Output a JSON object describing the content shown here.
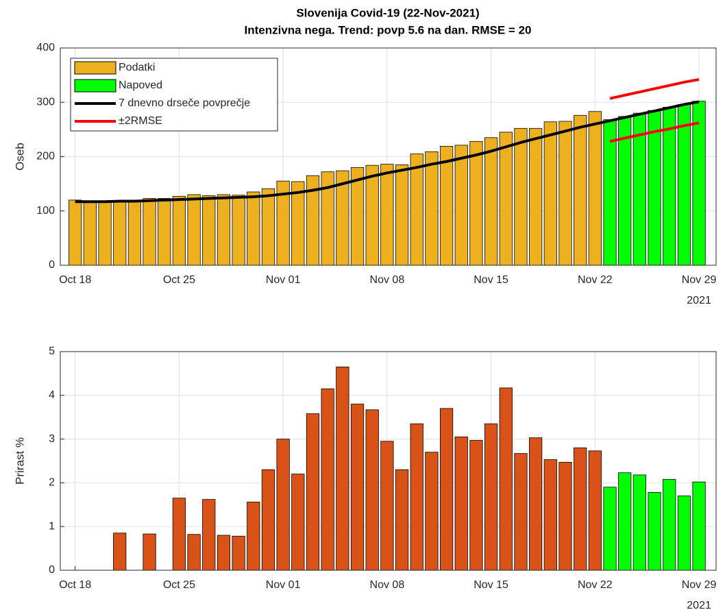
{
  "chart_data": [
    {
      "type": "bar",
      "title": "Slovenija Covid-19 (22-Nov-2021)",
      "subtitle": "Intenzivna nega. Trend: povp 5.6 na dan. RMSE = 20",
      "ylabel": "Oseb",
      "categories": [
        "Oct 18",
        null,
        null,
        null,
        null,
        null,
        null,
        "Oct 25",
        null,
        null,
        null,
        null,
        null,
        null,
        "Nov 01",
        null,
        null,
        null,
        null,
        null,
        null,
        "Nov 08",
        null,
        null,
        null,
        null,
        null,
        null,
        "Nov 15",
        null,
        null,
        null,
        null,
        null,
        null,
        "Nov 22",
        null,
        null,
        null,
        null,
        null,
        null,
        "Nov 29"
      ],
      "x_year": "2021",
      "ylim": [
        0,
        400
      ],
      "yticks": [
        0,
        100,
        200,
        300,
        400
      ],
      "grid": true,
      "legend": "northwest",
      "series": [
        {
          "name": "Podatki",
          "type": "bar",
          "color": "#edb120",
          "values": [
            120,
            117,
            117,
            118,
            118,
            123,
            123,
            127,
            130,
            128,
            130,
            129,
            135,
            141,
            155,
            154,
            165,
            172,
            174,
            180,
            184,
            186,
            185,
            205,
            209,
            219,
            221,
            228,
            235,
            245,
            252,
            252,
            264,
            265,
            276,
            283,
            null,
            null,
            null,
            null,
            null,
            null,
            null
          ]
        },
        {
          "name": "Napoved",
          "type": "bar",
          "color": "#00ff00",
          "values": [
            null,
            null,
            null,
            null,
            null,
            null,
            null,
            null,
            null,
            null,
            null,
            null,
            null,
            null,
            null,
            null,
            null,
            null,
            null,
            null,
            null,
            null,
            null,
            null,
            null,
            null,
            null,
            null,
            null,
            null,
            null,
            null,
            null,
            null,
            null,
            null,
            268,
            274,
            280,
            285,
            291,
            296,
            302
          ]
        },
        {
          "name": "7 dnevno drseče povprečje",
          "type": "line",
          "color": "#000000",
          "values": [
            117,
            117,
            117,
            118,
            118,
            119,
            120,
            121,
            122,
            123,
            124,
            125,
            126,
            128,
            131,
            134,
            138,
            143,
            150,
            157,
            164,
            170,
            175,
            180,
            186,
            191,
            197,
            203,
            210,
            218,
            226,
            233,
            240,
            247,
            254,
            260,
            266,
            272,
            278,
            284,
            290,
            296,
            301
          ]
        },
        {
          "name": "±2RMSE",
          "type": "line",
          "color": "#ff0000",
          "values": [
            null,
            null,
            null,
            null,
            null,
            null,
            null,
            null,
            null,
            null,
            null,
            null,
            null,
            null,
            null,
            null,
            null,
            null,
            null,
            null,
            null,
            null,
            null,
            null,
            null,
            null,
            null,
            null,
            null,
            null,
            null,
            null,
            null,
            null,
            null,
            null,
            307,
            313,
            319,
            325,
            331,
            337,
            342
          ]
        },
        {
          "type": "line",
          "color": "#ff0000",
          "values": [
            null,
            null,
            null,
            null,
            null,
            null,
            null,
            null,
            null,
            null,
            null,
            null,
            null,
            null,
            null,
            null,
            null,
            null,
            null,
            null,
            null,
            null,
            null,
            null,
            null,
            null,
            null,
            null,
            null,
            null,
            null,
            null,
            null,
            null,
            null,
            null,
            228,
            234,
            240,
            246,
            251,
            257,
            262
          ]
        }
      ]
    },
    {
      "type": "bar",
      "ylabel": "Prirast %",
      "categories": [
        "Oct 18",
        null,
        null,
        null,
        null,
        null,
        null,
        "Oct 25",
        null,
        null,
        null,
        null,
        null,
        null,
        "Nov 01",
        null,
        null,
        null,
        null,
        null,
        null,
        "Nov 08",
        null,
        null,
        null,
        null,
        null,
        null,
        "Nov 15",
        null,
        null,
        null,
        null,
        null,
        null,
        "Nov 22",
        null,
        null,
        null,
        null,
        null,
        null,
        "Nov 29"
      ],
      "x_year": "2021",
      "ylim": [
        0,
        5
      ],
      "yticks": [
        0,
        1,
        2,
        3,
        4,
        5
      ],
      "grid": true,
      "series": [
        {
          "type": "bar",
          "color": "#d95319",
          "values": [
            0,
            0,
            0,
            0.85,
            0,
            0.83,
            0,
            1.65,
            0.82,
            1.62,
            0.8,
            0.78,
            1.56,
            2.3,
            3.0,
            2.2,
            3.58,
            4.15,
            4.65,
            3.8,
            3.67,
            2.95,
            2.3,
            3.35,
            2.7,
            3.7,
            3.05,
            2.97,
            3.35,
            4.17,
            2.67,
            3.03,
            2.53,
            2.47,
            2.8,
            2.73,
            null,
            null,
            null,
            null,
            null,
            null,
            null
          ]
        },
        {
          "type": "bar",
          "color": "#00ff00",
          "values": [
            null,
            null,
            null,
            null,
            null,
            null,
            null,
            null,
            null,
            null,
            null,
            null,
            null,
            null,
            null,
            null,
            null,
            null,
            null,
            null,
            null,
            null,
            null,
            null,
            null,
            null,
            null,
            null,
            null,
            null,
            null,
            null,
            null,
            null,
            null,
            null,
            1.9,
            2.23,
            2.18,
            1.78,
            2.08,
            1.7,
            2.02
          ]
        }
      ]
    }
  ]
}
